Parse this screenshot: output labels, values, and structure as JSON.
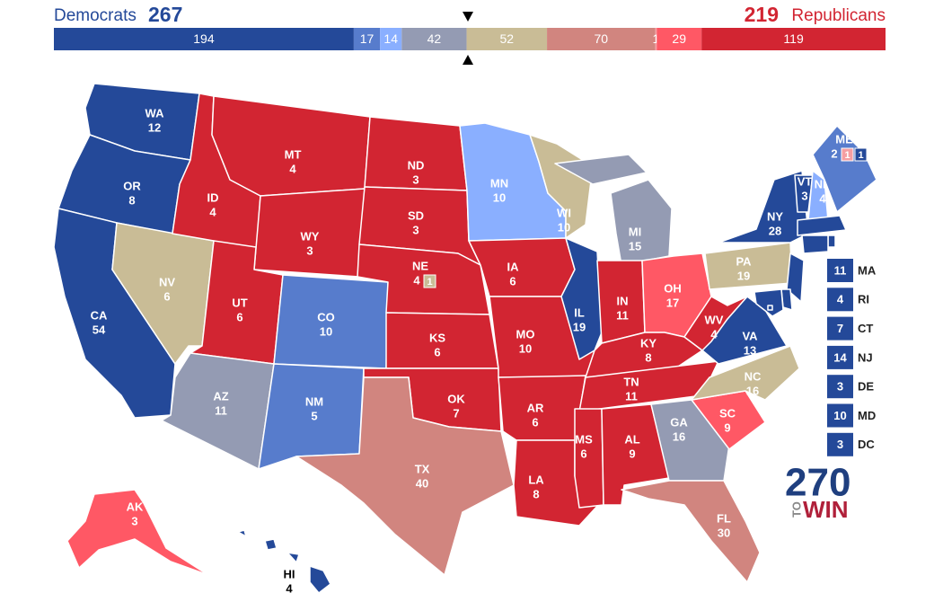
{
  "header": {
    "dem_label": "Democrats",
    "dem_total": "267",
    "rep_total": "219",
    "rep_label": "Republicans"
  },
  "bar": {
    "total": 538,
    "segments": [
      {
        "value": 194,
        "color": "#244999"
      },
      {
        "value": 17,
        "color": "#577ccc"
      },
      {
        "value": 14,
        "color": "#8aafff"
      },
      {
        "value": 42,
        "color": "#949bb3"
      },
      {
        "value": 52,
        "color": "#c9bc96"
      },
      {
        "value": 70,
        "color": "#d1857f"
      },
      {
        "value": 1,
        "color": "#f59ea2"
      },
      {
        "value": 29,
        "color": "#ff5865"
      },
      {
        "value": 119,
        "color": "#d22532"
      }
    ]
  },
  "states": [
    {
      "abbr": "WA",
      "ev": "12",
      "color": "#244999"
    },
    {
      "abbr": "OR",
      "ev": "8",
      "color": "#244999"
    },
    {
      "abbr": "CA",
      "ev": "54",
      "color": "#244999"
    },
    {
      "abbr": "NV",
      "ev": "6",
      "color": "#c9bc96"
    },
    {
      "abbr": "ID",
      "ev": "4",
      "color": "#d22532"
    },
    {
      "abbr": "MT",
      "ev": "4",
      "color": "#d22532"
    },
    {
      "abbr": "WY",
      "ev": "3",
      "color": "#d22532"
    },
    {
      "abbr": "UT",
      "ev": "6",
      "color": "#d22532"
    },
    {
      "abbr": "CO",
      "ev": "10",
      "color": "#577ccc"
    },
    {
      "abbr": "AZ",
      "ev": "11",
      "color": "#949bb3"
    },
    {
      "abbr": "NM",
      "ev": "5",
      "color": "#577ccc"
    },
    {
      "abbr": "ND",
      "ev": "3",
      "color": "#d22532"
    },
    {
      "abbr": "SD",
      "ev": "3",
      "color": "#d22532"
    },
    {
      "abbr": "NE",
      "ev": "4",
      "color": "#d22532",
      "districts": [
        {
          "ev": "1",
          "color": "#c9bc96"
        }
      ]
    },
    {
      "abbr": "KS",
      "ev": "6",
      "color": "#d22532"
    },
    {
      "abbr": "OK",
      "ev": "7",
      "color": "#d22532"
    },
    {
      "abbr": "TX",
      "ev": "40",
      "color": "#d1857f"
    },
    {
      "abbr": "MN",
      "ev": "10",
      "color": "#8aafff"
    },
    {
      "abbr": "IA",
      "ev": "6",
      "color": "#d22532"
    },
    {
      "abbr": "MO",
      "ev": "10",
      "color": "#d22532"
    },
    {
      "abbr": "AR",
      "ev": "6",
      "color": "#d22532"
    },
    {
      "abbr": "LA",
      "ev": "8",
      "color": "#d22532"
    },
    {
      "abbr": "WI",
      "ev": "10",
      "color": "#c9bc96"
    },
    {
      "abbr": "IL",
      "ev": "19",
      "color": "#244999"
    },
    {
      "abbr": "MI",
      "ev": "15",
      "color": "#949bb3"
    },
    {
      "abbr": "IN",
      "ev": "11",
      "color": "#d22532"
    },
    {
      "abbr": "OH",
      "ev": "17",
      "color": "#ff5865"
    },
    {
      "abbr": "KY",
      "ev": "8",
      "color": "#d22532"
    },
    {
      "abbr": "TN",
      "ev": "11",
      "color": "#d22532"
    },
    {
      "abbr": "MS",
      "ev": "6",
      "color": "#d22532"
    },
    {
      "abbr": "AL",
      "ev": "9",
      "color": "#d22532"
    },
    {
      "abbr": "GA",
      "ev": "16",
      "color": "#949bb3"
    },
    {
      "abbr": "FL",
      "ev": "30",
      "color": "#d1857f"
    },
    {
      "abbr": "SC",
      "ev": "9",
      "color": "#ff5865"
    },
    {
      "abbr": "NC",
      "ev": "16",
      "color": "#c9bc96"
    },
    {
      "abbr": "VA",
      "ev": "13",
      "color": "#244999"
    },
    {
      "abbr": "WV",
      "ev": "4",
      "color": "#d22532"
    },
    {
      "abbr": "PA",
      "ev": "19",
      "color": "#c9bc96"
    },
    {
      "abbr": "NY",
      "ev": "28",
      "color": "#244999"
    },
    {
      "abbr": "VT",
      "ev": "3",
      "color": "#244999"
    },
    {
      "abbr": "NH",
      "ev": "4",
      "color": "#8aafff"
    },
    {
      "abbr": "ME",
      "ev": "2",
      "color": "#577ccc",
      "districts": [
        {
          "ev": "1",
          "color": "#f59ea2"
        },
        {
          "ev": "1",
          "color": "#244999"
        }
      ]
    },
    {
      "abbr": "AK",
      "ev": "3",
      "color": "#ff5865"
    },
    {
      "abbr": "HI",
      "ev": "4",
      "color": "#244999"
    }
  ],
  "small_states": [
    {
      "abbr": "MA",
      "ev": "11",
      "color": "#244999"
    },
    {
      "abbr": "RI",
      "ev": "4",
      "color": "#244999"
    },
    {
      "abbr": "CT",
      "ev": "7",
      "color": "#244999"
    },
    {
      "abbr": "NJ",
      "ev": "14",
      "color": "#244999"
    },
    {
      "abbr": "DE",
      "ev": "3",
      "color": "#244999"
    },
    {
      "abbr": "MD",
      "ev": "10",
      "color": "#244999"
    },
    {
      "abbr": "DC",
      "ev": "3",
      "color": "#244999"
    }
  ],
  "logo": {
    "number": "270",
    "to": "TO",
    "win": "WIN"
  }
}
